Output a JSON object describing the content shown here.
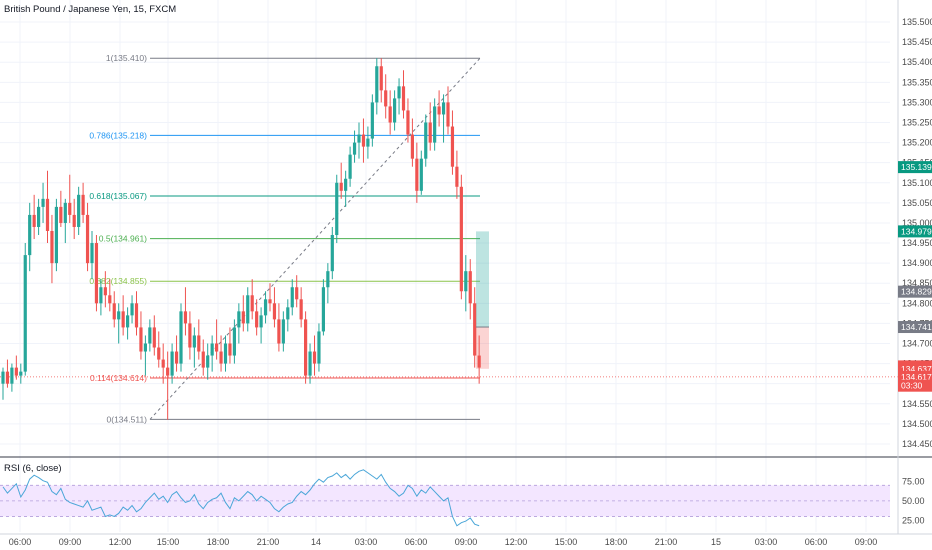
{
  "chart_data": [
    {
      "type": "candlestick",
      "title": "British Pound / Japanese Yen, 15, FXCM",
      "ylim": [
        134.42,
        135.53
      ],
      "y_ticks": [
        "135.500",
        "135.450",
        "135.400",
        "135.350",
        "135.300",
        "135.250",
        "135.200",
        "135.150",
        "135.100",
        "135.050",
        "135.000",
        "134.950",
        "134.900",
        "134.850",
        "134.800",
        "134.750",
        "134.700",
        "134.650",
        "134.600",
        "134.550",
        "134.500",
        "134.450"
      ],
      "x_ticks": [
        "06:00",
        "09:00",
        "12:00",
        "15:00",
        "18:00",
        "21:00",
        "14",
        "03:00",
        "06:00",
        "09:00",
        "12:00",
        "15:00",
        "18:00",
        "21:00",
        "15",
        "03:00",
        "06:00",
        "09:00"
      ],
      "grid": true,
      "colors": {
        "up": "#26a69a",
        "down": "#ef5350",
        "fib_line": "#787b86",
        "rsi_line": "#4aa6d8",
        "rsi_band": "#f3e6ff"
      },
      "candles": [
        [
          134.6,
          134.64,
          134.56,
          134.63
        ],
        [
          134.63,
          134.66,
          134.59,
          134.6
        ],
        [
          134.6,
          134.65,
          134.58,
          134.64
        ],
        [
          134.64,
          134.67,
          134.61,
          134.62
        ],
        [
          134.62,
          134.65,
          134.6,
          134.63
        ],
        [
          134.63,
          134.95,
          134.62,
          134.92
        ],
        [
          134.92,
          135.05,
          134.88,
          135.02
        ],
        [
          135.02,
          135.07,
          134.96,
          134.99
        ],
        [
          134.99,
          135.06,
          134.97,
          135.04
        ],
        [
          135.04,
          135.1,
          135.0,
          135.06
        ],
        [
          135.06,
          135.13,
          134.95,
          134.98
        ],
        [
          134.98,
          135.02,
          134.85,
          134.9
        ],
        [
          134.9,
          135.06,
          134.88,
          135.04
        ],
        [
          135.04,
          135.08,
          134.99,
          135.0
        ],
        [
          135.0,
          135.06,
          134.95,
          135.05
        ],
        [
          135.05,
          135.12,
          135.0,
          135.02
        ],
        [
          135.02,
          135.06,
          134.96,
          134.99
        ],
        [
          134.99,
          135.09,
          134.97,
          135.07
        ],
        [
          135.07,
          135.1,
          135.0,
          135.02
        ],
        [
          135.02,
          135.05,
          134.88,
          134.9
        ],
        [
          134.9,
          134.98,
          134.86,
          134.95
        ],
        [
          134.95,
          134.97,
          134.78,
          134.8
        ],
        [
          134.8,
          134.86,
          134.77,
          134.84
        ],
        [
          134.84,
          134.88,
          134.79,
          134.82
        ],
        [
          134.82,
          134.86,
          134.78,
          134.8
        ],
        [
          134.8,
          134.83,
          134.74,
          134.76
        ],
        [
          134.76,
          134.8,
          134.7,
          134.78
        ],
        [
          134.78,
          134.82,
          134.72,
          134.74
        ],
        [
          134.74,
          134.79,
          134.71,
          134.77
        ],
        [
          134.77,
          134.82,
          134.75,
          134.8
        ],
        [
          134.8,
          134.83,
          134.72,
          134.74
        ],
        [
          134.74,
          134.78,
          134.66,
          134.68
        ],
        [
          134.68,
          134.72,
          134.62,
          134.7
        ],
        [
          134.7,
          134.76,
          134.68,
          134.74
        ],
        [
          134.74,
          134.77,
          134.67,
          134.69
        ],
        [
          134.69,
          134.73,
          134.64,
          134.66
        ],
        [
          134.66,
          134.7,
          134.6,
          134.64
        ],
        [
          134.64,
          134.68,
          134.51,
          134.62
        ],
        [
          134.62,
          134.7,
          134.6,
          134.68
        ],
        [
          134.68,
          134.72,
          134.63,
          134.65
        ],
        [
          134.65,
          134.8,
          134.63,
          134.78
        ],
        [
          134.78,
          134.84,
          134.72,
          134.75
        ],
        [
          134.75,
          134.78,
          134.66,
          134.69
        ],
        [
          134.69,
          134.74,
          134.64,
          134.72
        ],
        [
          134.72,
          134.76,
          134.66,
          134.68
        ],
        [
          134.68,
          134.71,
          134.62,
          134.64
        ],
        [
          134.64,
          134.7,
          134.61,
          134.67
        ],
        [
          134.67,
          134.72,
          134.63,
          134.7
        ],
        [
          134.7,
          134.76,
          134.66,
          134.68
        ],
        [
          134.68,
          134.72,
          134.63,
          134.65
        ],
        [
          134.65,
          134.72,
          134.63,
          134.7
        ],
        [
          134.7,
          134.74,
          134.65,
          134.67
        ],
        [
          134.67,
          134.76,
          134.65,
          134.74
        ],
        [
          134.74,
          134.8,
          134.7,
          134.78
        ],
        [
          134.78,
          134.82,
          134.73,
          134.75
        ],
        [
          134.75,
          134.84,
          134.73,
          134.82
        ],
        [
          134.82,
          134.86,
          134.76,
          134.78
        ],
        [
          134.78,
          134.81,
          134.72,
          134.74
        ],
        [
          134.74,
          134.79,
          134.7,
          134.77
        ],
        [
          134.77,
          134.83,
          134.75,
          134.81
        ],
        [
          134.81,
          134.85,
          134.78,
          134.8
        ],
        [
          134.8,
          134.84,
          134.74,
          134.76
        ],
        [
          134.76,
          134.8,
          134.68,
          134.7
        ],
        [
          134.7,
          134.78,
          134.68,
          134.76
        ],
        [
          134.76,
          134.81,
          134.73,
          134.79
        ],
        [
          134.79,
          134.86,
          134.77,
          134.84
        ],
        [
          134.84,
          134.87,
          134.79,
          134.81
        ],
        [
          134.81,
          134.84,
          134.74,
          134.76
        ],
        [
          134.76,
          134.78,
          134.6,
          134.62
        ],
        [
          134.62,
          134.7,
          134.6,
          134.68
        ],
        [
          134.68,
          134.72,
          134.62,
          134.65
        ],
        [
          134.65,
          134.75,
          134.63,
          134.73
        ],
        [
          134.73,
          134.86,
          134.72,
          134.84
        ],
        [
          134.84,
          134.9,
          134.8,
          134.88
        ],
        [
          134.88,
          134.99,
          134.86,
          134.97
        ],
        [
          134.97,
          135.12,
          134.95,
          135.1
        ],
        [
          135.1,
          135.15,
          135.06,
          135.08
        ],
        [
          135.08,
          135.13,
          135.04,
          135.11
        ],
        [
          135.11,
          135.19,
          135.09,
          135.17
        ],
        [
          135.17,
          135.23,
          135.15,
          135.2
        ],
        [
          135.2,
          135.25,
          135.16,
          135.22
        ],
        [
          135.22,
          135.26,
          135.15,
          135.19
        ],
        [
          135.19,
          135.24,
          135.16,
          135.21
        ],
        [
          135.21,
          135.32,
          135.19,
          135.3
        ],
        [
          135.3,
          135.41,
          135.27,
          135.39
        ],
        [
          135.39,
          135.41,
          135.3,
          135.33
        ],
        [
          135.33,
          135.37,
          135.26,
          135.29
        ],
        [
          135.29,
          135.33,
          135.22,
          135.25
        ],
        [
          135.25,
          135.33,
          135.23,
          135.31
        ],
        [
          135.31,
          135.36,
          135.27,
          135.34
        ],
        [
          135.34,
          135.38,
          135.26,
          135.28
        ],
        [
          135.28,
          135.31,
          135.2,
          135.22
        ],
        [
          135.22,
          135.26,
          135.14,
          135.16
        ],
        [
          135.16,
          135.2,
          135.05,
          135.08
        ],
        [
          135.08,
          135.18,
          135.07,
          135.16
        ],
        [
          135.16,
          135.27,
          135.14,
          135.25
        ],
        [
          135.25,
          135.3,
          135.18,
          135.2
        ],
        [
          135.2,
          135.31,
          135.18,
          135.29
        ],
        [
          135.29,
          135.33,
          135.24,
          135.27
        ],
        [
          135.27,
          135.32,
          135.2,
          135.3
        ],
        [
          135.3,
          135.34,
          135.22,
          135.24
        ],
        [
          135.24,
          135.28,
          135.12,
          135.14
        ],
        [
          135.14,
          135.18,
          135.06,
          135.09
        ],
        [
          135.09,
          135.12,
          134.81,
          134.83
        ],
        [
          134.83,
          134.92,
          134.78,
          134.88
        ],
        [
          134.88,
          134.91,
          134.76,
          134.8
        ],
        [
          134.8,
          134.84,
          134.64,
          134.67
        ],
        [
          134.67,
          134.72,
          134.6,
          134.64
        ]
      ],
      "fibonacci": [
        {
          "label": "1(135.410)",
          "value": 135.41,
          "color": "#787b86"
        },
        {
          "label": "0.786(135.218)",
          "value": 135.218,
          "color": "#2196f3"
        },
        {
          "label": "0.618(135.067)",
          "value": 135.067,
          "color": "#089981"
        },
        {
          "label": "0.5(134.961)",
          "value": 134.961,
          "color": "#4caf50"
        },
        {
          "label": "0.382(134.855)",
          "value": 134.855,
          "color": "#8bc34a"
        },
        {
          "label": "0.114(134.614)",
          "value": 134.614,
          "color": "#ef5350"
        },
        {
          "label": "0(134.511)",
          "value": 134.511,
          "color": "#787b86"
        }
      ],
      "price_tags": [
        {
          "text": "135.139",
          "value": 135.139,
          "color": "#089981"
        },
        {
          "text": "134.979",
          "value": 134.979,
          "color": "#089981"
        },
        {
          "text": "134.829",
          "value": 134.829,
          "color": "#787b86"
        },
        {
          "text": "134.741",
          "value": 134.741,
          "color": "#787b86"
        },
        {
          "text": "134.643",
          "value": 134.643,
          "color": "#ef5350"
        },
        {
          "text": "134.637",
          "value": 134.637,
          "color": "#ef5350"
        },
        {
          "text": "134.617",
          "value": 134.617,
          "color": "#ef5350"
        },
        {
          "text": "03:30",
          "value": 134.595,
          "color": "#ef5350"
        }
      ],
      "position": {
        "entry": 134.741,
        "target": 134.979,
        "stop": 134.637
      }
    },
    {
      "type": "line",
      "title": "RSI (6, close)",
      "ylim": [
        10,
        100
      ],
      "y_ticks": [
        "75.00",
        "50.00",
        "25.00"
      ],
      "band": [
        30,
        70
      ],
      "values": [
        68,
        60,
        66,
        72,
        55,
        64,
        78,
        83,
        80,
        76,
        74,
        62,
        58,
        66,
        52,
        48,
        46,
        44,
        42,
        50,
        38,
        40,
        42,
        30,
        32,
        30,
        34,
        42,
        38,
        44,
        36,
        40,
        48,
        54,
        60,
        52,
        56,
        48,
        58,
        62,
        54,
        48,
        50,
        58,
        46,
        40,
        48,
        52,
        54,
        60,
        48,
        40,
        54,
        50,
        56,
        62,
        58,
        50,
        56,
        52,
        48,
        40,
        36,
        42,
        46,
        48,
        56,
        62,
        58,
        64,
        72,
        78,
        74,
        80,
        82,
        86,
        80,
        84,
        78,
        84,
        88,
        90,
        86,
        82,
        78,
        84,
        74,
        66,
        62,
        56,
        60,
        70,
        66,
        56,
        64,
        60,
        68,
        62,
        56,
        50,
        54,
        30,
        18,
        22,
        24,
        28,
        20,
        18
      ]
    }
  ]
}
